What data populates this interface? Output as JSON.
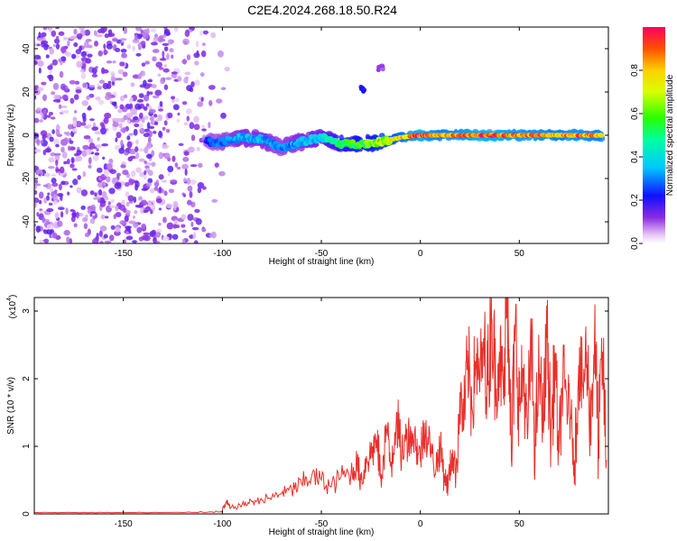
{
  "figure": {
    "title": "C2E4.2024.268.18.50.R24"
  },
  "chart_data": [
    {
      "type": "heatmap",
      "title": "",
      "xlabel": "Height of straight line (km)",
      "ylabel": "Frequency (Hz)",
      "xlim": [
        -195,
        95
      ],
      "ylim": [
        -50,
        50
      ],
      "xticks": [
        -150,
        -100,
        -50,
        0,
        50
      ],
      "yticks": [
        -40,
        -20,
        0,
        20,
        40
      ],
      "colorbar": {
        "label": "Normalized spectral amplitude",
        "range": [
          0,
          1
        ],
        "ticks": [
          0.0,
          0.2,
          0.4,
          0.6,
          0.8
        ],
        "tick_labels": [
          "0.0",
          "0.2",
          "0.4",
          "0.6",
          "0.8"
        ],
        "colormap": "rainbow"
      },
      "features": [
        {
          "kind": "noise",
          "x_range": [
            -195,
            -105
          ],
          "y_range": [
            -50,
            50
          ],
          "amplitude": 0.15
        },
        {
          "kind": "ridge",
          "x": [
            -108,
            -100,
            -90,
            -80,
            -70,
            -60,
            -50,
            -40,
            -30,
            -20,
            -10,
            0,
            10,
            20,
            30,
            40,
            50,
            60,
            70,
            80,
            92
          ],
          "y": [
            -3,
            -3,
            -1,
            -2,
            -6,
            -3,
            -1,
            -4,
            -4,
            -3,
            -1,
            0,
            0,
            0,
            0,
            0,
            0,
            0,
            0,
            0,
            0
          ],
          "amplitude": [
            0.25,
            0.3,
            0.35,
            0.35,
            0.3,
            0.35,
            0.4,
            0.55,
            0.6,
            0.7,
            0.8,
            0.95,
            0.85,
            0.9,
            0.95,
            0.95,
            0.9,
            0.9,
            0.85,
            0.9,
            0.85
          ]
        },
        {
          "kind": "spot",
          "x": -29,
          "y": 21,
          "amplitude": 0.2
        },
        {
          "kind": "spot",
          "x": -20,
          "y": 31,
          "amplitude": 0.1
        }
      ]
    },
    {
      "type": "line",
      "title": "",
      "xlabel": "Height of straight line (km)",
      "ylabel": "SNR (10 * v/v)",
      "y_scale_label": "(x10",
      "y_scale_exponent": "4",
      "y_scale_close": ")",
      "xlim": [
        -195,
        95
      ],
      "ylim": [
        0,
        3.2
      ],
      "xticks": [
        -150,
        -100,
        -50,
        0,
        50
      ],
      "yticks": [
        0,
        1,
        2,
        3
      ],
      "series": [
        {
          "color": "#e8302a",
          "x": [
            -195,
            -180,
            -160,
            -140,
            -120,
            -105,
            -100,
            -98,
            -96,
            -90,
            -85,
            -80,
            -75,
            -70,
            -65,
            -60,
            -55,
            -50,
            -45,
            -40,
            -35,
            -32,
            -30,
            -27,
            -25,
            -22,
            -20,
            -17,
            -15,
            -12,
            -10,
            -7,
            -5,
            -2,
            0,
            2,
            5,
            8,
            10,
            12,
            14,
            16,
            18,
            20,
            22,
            24,
            26,
            28,
            30,
            32,
            34,
            36,
            38,
            40,
            42,
            44,
            45,
            46,
            48,
            50,
            52,
            54,
            56,
            58,
            60,
            62,
            64,
            66,
            68,
            70,
            72,
            74,
            76,
            78,
            80,
            82,
            84,
            86,
            88,
            90,
            92,
            94
          ],
          "y": [
            0.02,
            0.02,
            0.02,
            0.02,
            0.02,
            0.03,
            0.04,
            0.18,
            0.08,
            0.14,
            0.18,
            0.2,
            0.25,
            0.3,
            0.35,
            0.45,
            0.55,
            0.5,
            0.4,
            0.55,
            0.6,
            0.75,
            0.5,
            0.8,
            0.9,
            1.1,
            0.6,
            1.25,
            0.7,
            1.5,
            0.9,
            1.1,
            1.3,
            1.0,
            0.8,
            1.35,
            0.9,
            0.7,
            1.0,
            0.6,
            0.4,
            0.9,
            0.6,
            1.8,
            1.3,
            2.3,
            1.6,
            2.25,
            1.8,
            2.6,
            1.9,
            2.9,
            2.0,
            2.4,
            1.7,
            3.25,
            2.3,
            0.8,
            2.8,
            1.6,
            2.1,
            1.2,
            2.5,
            1.0,
            2.2,
            1.3,
            2.6,
            1.1,
            2.3,
            0.9,
            2.0,
            1.7,
            1.4,
            0.8,
            2.2,
            1.9,
            2.4,
            1.3,
            2.6,
            1.1,
            2.4,
            0.8
          ]
        }
      ]
    }
  ]
}
